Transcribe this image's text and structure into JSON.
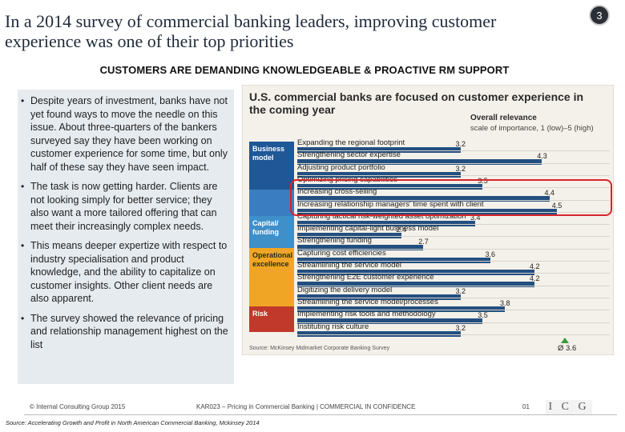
{
  "slide": {
    "title": "In a 2014 survey of commercial banking leaders, improving customer experience was one of their top priorities",
    "page_number": "3",
    "subtitle": "CUSTOMERS ARE DEMANDING KNOWLEDGEABLE & PROACTIVE RM SUPPORT"
  },
  "bullets": [
    "Despite years of investment, banks have not yet found ways to move the needle on this issue. About three-quarters of the bankers surveyed say they have been working on customer experience for some time, but only half of these say they have seen impact.",
    "The task is now getting harder. Clients are not looking simply for better service; they also want a more tailored offering that can meet their increasingly complex needs.",
    "This means deeper expertize with respect to industry specialisation and product knowledge, and the ability to capitalize on customer insights. Other client needs are also apparent.",
    "The survey showed the relevance of pricing and relationship management highest on the list"
  ],
  "chart": {
    "title": "U.S. commercial banks are focused on customer experience in the coming year",
    "column_header": "Overall relevance",
    "column_subheader": "scale of importance, 1 (low)–5 (high)",
    "source": "Source: McKinsey Midmarket Corporate Banking Survey",
    "average_label": "Ø 3.6",
    "categories": [
      {
        "label": "Business model"
      },
      {
        "label": "Capital/ funding"
      },
      {
        "label": "Operational excellence"
      },
      {
        "label": "Risk"
      }
    ]
  },
  "chart_data": {
    "type": "bar",
    "orientation": "horizontal",
    "title": "U.S. commercial banks are focused on customer experience in the coming year",
    "xlabel": "Overall relevance, scale of importance, 1 (low)–5 (high)",
    "xlim": [
      1,
      5
    ],
    "average": 3.6,
    "groups": [
      "Business model",
      "Capital/ funding",
      "Operational excellence",
      "Risk"
    ],
    "categories": [
      "Expanding the regional footprint",
      "Strengthening sector expertise",
      "Adjusting product portfolio",
      "Optimizing pricing capabilities",
      "Increasing cross-selling",
      "Increasing relationship managers' time spent with client",
      "Capturing tactical risk-weighted asset optimization",
      "Implementing capital-light business model",
      "Strengthening funding",
      "Capturing cost efficiencies",
      "Streamlining the service model",
      "Strengthening E2E customer experience",
      "Digitizing the delivery model",
      "Streamlining the service model/processes",
      "Implementing risk tools and methodology",
      "Instituting risk culture"
    ],
    "values": [
      3.2,
      4.3,
      3.2,
      3.5,
      4.4,
      4.5,
      3.4,
      2.4,
      2.7,
      3.6,
      4.2,
      4.2,
      3.2,
      3.8,
      3.5,
      3.2
    ],
    "value_labels": [
      "3.2",
      "4.3",
      "3.2",
      "3.5",
      "4.4",
      "4.5",
      "3.4",
      "2.4",
      "2.7",
      "3.6",
      "4.2",
      "4.2",
      "3.2",
      "3.8",
      "3.5",
      "3.2"
    ],
    "group_of_row": [
      0,
      0,
      0,
      0,
      0,
      0,
      1,
      1,
      1,
      2,
      2,
      2,
      2,
      2,
      3,
      3
    ],
    "highlighted_rows": [
      4,
      5
    ]
  },
  "footer": {
    "copyright": "© Internal Consulting Group 2015",
    "document": "KAR023 – Pricing in Commercial Banking | COMMERCIAL IN CONFIDENCE",
    "page": "01",
    "logo_text": "I C G",
    "source_note": "Source: Accelerating Growth and Profit in North American Commercial Banking, Mckinsey 2014"
  },
  "colors": {
    "bar": "#234f80",
    "business_model": "#1f5797",
    "capital_funding": "#3f8fc9",
    "operational_excellence": "#f0a624",
    "risk": "#c0392b",
    "highlight": "#d8242a",
    "average_marker": "#3a9a3a"
  }
}
